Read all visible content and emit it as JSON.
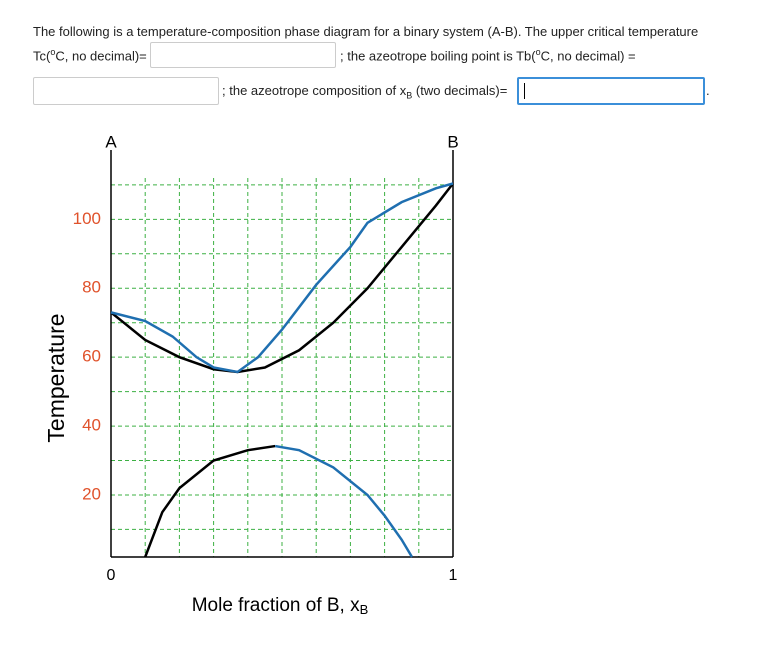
{
  "question": {
    "line1": "The following is a temperature-composition phase diagram for a binary system (A-B).  The upper critical temperature",
    "tc_prefix": "Tc(",
    "tc_sup": "o",
    "tc_suffix": "C, no decimal)=",
    "tb_prefix": "; the azeotrope boiling point is Tb(",
    "tb_sup": "o",
    "tb_suffix": "C, no decimal) =",
    "xb_prefix": "; the azeotrope composition of x",
    "xb_sub": "B",
    "xb_suffix": " (two decimals)=",
    "end": "."
  },
  "chart_data": {
    "type": "line",
    "left_label": "A",
    "right_label": "B",
    "ylabel": "Temperature",
    "xlabel": "Mole fraction of B, x",
    "xlabel_sub": "B",
    "xlim": [
      0,
      1
    ],
    "ylim": [
      2,
      112
    ],
    "xticks": [
      0,
      1
    ],
    "minor_xticks": [
      0.1,
      0.2,
      0.3,
      0.4,
      0.5,
      0.6,
      0.7,
      0.8,
      0.9
    ],
    "yticks": [
      20,
      40,
      60,
      80,
      100
    ],
    "minor_yticks": [
      10,
      30,
      50,
      70,
      90,
      110
    ],
    "grid": true,
    "grid_color": "#3cb043",
    "ytick_color": "#e0522b",
    "series": [
      {
        "color": "#000000",
        "x": [
          0,
          0.1,
          0.2,
          0.3,
          0.37,
          0.45,
          0.55,
          0.65,
          0.75,
          0.85,
          0.95,
          1
        ],
        "values": [
          73,
          65,
          60,
          56.5,
          55.7,
          57,
          62,
          70,
          80,
          92,
          104,
          110.4
        ]
      },
      {
        "color": "#1f6fb0",
        "x": [
          0,
          0.1,
          0.18,
          0.25,
          0.3,
          0.37,
          0.43,
          0.5,
          0.6,
          0.7,
          0.75,
          0.85,
          0.95,
          1
        ],
        "values": [
          73,
          70.5,
          66,
          60,
          57,
          55.7,
          60,
          68,
          81,
          92,
          99,
          105,
          109,
          110.4
        ]
      },
      {
        "color": "#000000",
        "x": [
          0.1,
          0.15,
          0.2,
          0.3,
          0.4,
          0.48
        ],
        "values": [
          2,
          15,
          22,
          30,
          33,
          34.2
        ]
      },
      {
        "color": "#1f6fb0",
        "x": [
          0.48,
          0.55,
          0.65,
          0.75,
          0.8,
          0.85,
          0.88
        ],
        "values": [
          34.2,
          33,
          28,
          20,
          14,
          7,
          2
        ]
      }
    ]
  }
}
